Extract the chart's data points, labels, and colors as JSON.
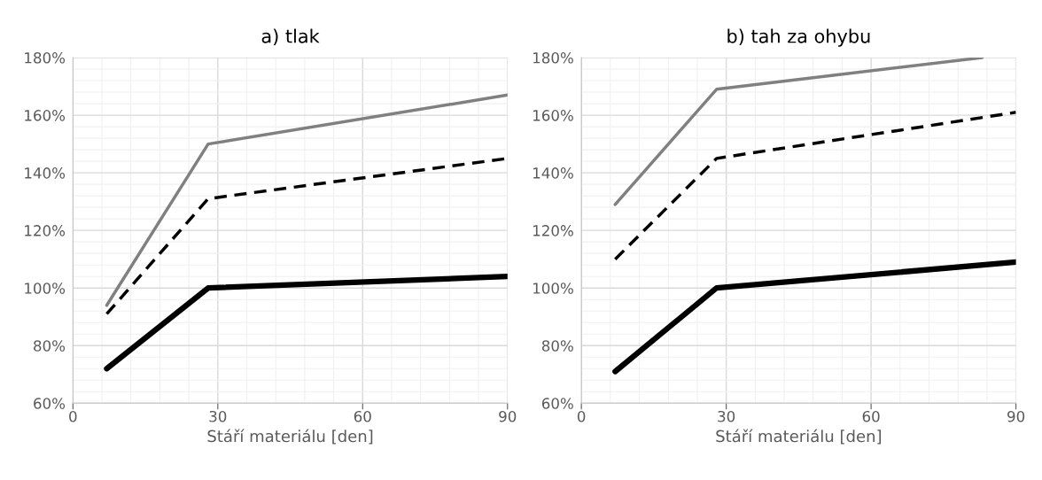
{
  "chart_data": [
    {
      "type": "line",
      "title": "a) tlak",
      "xlabel": "Stáří materiálu [den]",
      "grid": true,
      "xlim": [
        0,
        90
      ],
      "ylim": [
        60,
        180
      ],
      "xticks": [
        0,
        {
          "value": 6,
          "label": null
        },
        {
          "value": 12,
          "label": null
        },
        {
          "value": 18,
          "label": null
        },
        {
          "value": 24,
          "label": null
        },
        30,
        {
          "value": 36,
          "label": null
        },
        {
          "value": 42,
          "label": null
        },
        {
          "value": 48,
          "label": null
        },
        {
          "value": 54,
          "label": null
        },
        60,
        {
          "value": 66,
          "label": null
        },
        {
          "value": 72,
          "label": null
        },
        {
          "value": 78,
          "label": null
        },
        {
          "value": 84,
          "label": null
        },
        90
      ],
      "yticks": [
        {
          "value": 60,
          "label": "60%"
        },
        {
          "value": 64,
          "label": null
        },
        {
          "value": 68,
          "label": null
        },
        {
          "value": 72,
          "label": null
        },
        {
          "value": 76,
          "label": null
        },
        {
          "value": 80,
          "label": "80%"
        },
        {
          "value": 84,
          "label": null
        },
        {
          "value": 88,
          "label": null
        },
        {
          "value": 92,
          "label": null
        },
        {
          "value": 96,
          "label": null
        },
        {
          "value": 100,
          "label": "100%"
        },
        {
          "value": 104,
          "label": null
        },
        {
          "value": 108,
          "label": null
        },
        {
          "value": 112,
          "label": null
        },
        {
          "value": 116,
          "label": null
        },
        {
          "value": 120,
          "label": "120%"
        },
        {
          "value": 124,
          "label": null
        },
        {
          "value": 128,
          "label": null
        },
        {
          "value": 132,
          "label": null
        },
        {
          "value": 136,
          "label": null
        },
        {
          "value": 140,
          "label": "140%"
        },
        {
          "value": 144,
          "label": null
        },
        {
          "value": 148,
          "label": null
        },
        {
          "value": 152,
          "label": null
        },
        {
          "value": 156,
          "label": null
        },
        {
          "value": 160,
          "label": "160%"
        },
        {
          "value": 164,
          "label": null
        },
        {
          "value": 168,
          "label": null
        },
        {
          "value": 172,
          "label": null
        },
        {
          "value": 176,
          "label": null
        },
        {
          "value": 180,
          "label": "180%"
        }
      ],
      "series": [
        {
          "color": "#808080",
          "line_style": "solid",
          "x": [
            7,
            28,
            90
          ],
          "values": [
            94,
            150,
            167
          ]
        },
        {
          "color": "#000000",
          "line_style": "dashed",
          "x": [
            7,
            28,
            90
          ],
          "values": [
            91,
            131,
            145
          ]
        },
        {
          "color": "#000000",
          "line_style": "solid",
          "x": [
            7,
            28,
            90
          ],
          "values": [
            72,
            100,
            104
          ]
        }
      ]
    },
    {
      "type": "line",
      "title": "b) tah za ohybu",
      "xlabel": "Stáří materiálu [den]",
      "grid": true,
      "xlim": [
        0,
        90
      ],
      "ylim": [
        60,
        180
      ],
      "xticks": [
        0,
        {
          "value": 6,
          "label": null
        },
        {
          "value": 12,
          "label": null
        },
        {
          "value": 18,
          "label": null
        },
        {
          "value": 24,
          "label": null
        },
        30,
        {
          "value": 36,
          "label": null
        },
        {
          "value": 42,
          "label": null
        },
        {
          "value": 48,
          "label": null
        },
        {
          "value": 54,
          "label": null
        },
        60,
        {
          "value": 66,
          "label": null
        },
        {
          "value": 72,
          "label": null
        },
        {
          "value": 78,
          "label": null
        },
        {
          "value": 84,
          "label": null
        },
        90
      ],
      "yticks": [
        {
          "value": 60,
          "label": "60%"
        },
        {
          "value": 64,
          "label": null
        },
        {
          "value": 68,
          "label": null
        },
        {
          "value": 72,
          "label": null
        },
        {
          "value": 76,
          "label": null
        },
        {
          "value": 80,
          "label": "80%"
        },
        {
          "value": 84,
          "label": null
        },
        {
          "value": 88,
          "label": null
        },
        {
          "value": 92,
          "label": null
        },
        {
          "value": 96,
          "label": null
        },
        {
          "value": 100,
          "label": "100%"
        },
        {
          "value": 104,
          "label": null
        },
        {
          "value": 108,
          "label": null
        },
        {
          "value": 112,
          "label": null
        },
        {
          "value": 116,
          "label": null
        },
        {
          "value": 120,
          "label": "120%"
        },
        {
          "value": 124,
          "label": null
        },
        {
          "value": 128,
          "label": null
        },
        {
          "value": 132,
          "label": null
        },
        {
          "value": 136,
          "label": null
        },
        {
          "value": 140,
          "label": "140%"
        },
        {
          "value": 144,
          "label": null
        },
        {
          "value": 148,
          "label": null
        },
        {
          "value": 152,
          "label": null
        },
        {
          "value": 156,
          "label": null
        },
        {
          "value": 160,
          "label": "160%"
        },
        {
          "value": 164,
          "label": null
        },
        {
          "value": 168,
          "label": null
        },
        {
          "value": 172,
          "label": null
        },
        {
          "value": 176,
          "label": null
        },
        {
          "value": 180,
          "label": "180%"
        }
      ],
      "series": [
        {
          "color": "#808080",
          "line_style": "solid",
          "x": [
            7,
            28,
            83
          ],
          "values": [
            129,
            169,
            180
          ]
        },
        {
          "color": "#000000",
          "line_style": "dashed",
          "x": [
            7,
            28,
            90
          ],
          "values": [
            110,
            145,
            161
          ]
        },
        {
          "color": "#000000",
          "line_style": "solid",
          "x": [
            7,
            28,
            90
          ],
          "values": [
            71,
            100,
            109
          ]
        }
      ]
    }
  ]
}
